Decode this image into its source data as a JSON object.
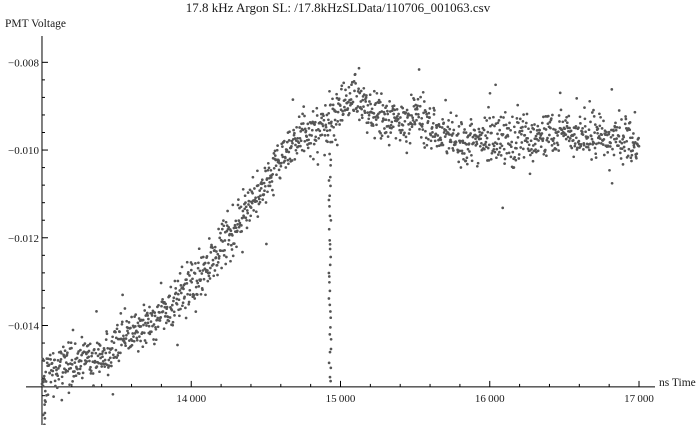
{
  "chart_data": {
    "type": "scatter",
    "title": "17.8 kHz Argon SL: /17.8kHzSLData/110706_001063.csv",
    "xlabel": "ns Time",
    "ylabel": "PMT Voltage",
    "xlim": [
      12980,
      17020
    ],
    "ylim": [
      -0.0162,
      -0.0074
    ],
    "x_axis_at_y": -0.0154,
    "y_axis_at_x": 13000,
    "x_ticks": [
      14000,
      15000,
      16000,
      17000
    ],
    "x_tick_labels": [
      "14 000",
      "15 000",
      "16 000",
      "17 000"
    ],
    "y_ticks": [
      -0.008,
      -0.01,
      -0.012,
      -0.014
    ],
    "y_tick_labels": [
      "−0.008",
      "−0.010",
      "−0.012",
      "−0.014"
    ],
    "marker_color": "#555555",
    "grid": false,
    "trend_points": {
      "x": [
        13000,
        13100,
        13200,
        13300,
        13400,
        13500,
        13600,
        13700,
        13800,
        13900,
        14000,
        14100,
        14200,
        14300,
        14400,
        14500,
        14600,
        14700,
        14800,
        14900,
        15000,
        15100,
        15200,
        15300,
        15400,
        15500,
        15600,
        15700,
        15800,
        15900,
        16000,
        16100,
        16200,
        16300,
        16400,
        16500,
        16600,
        16700,
        16800,
        16900,
        17000
      ],
      "y": [
        -0.0152,
        -0.015,
        -0.0149,
        -0.0148,
        -0.0147,
        -0.0144,
        -0.0142,
        -0.014,
        -0.0137,
        -0.0134,
        -0.0131,
        -0.0127,
        -0.0122,
        -0.0117,
        -0.0113,
        -0.0108,
        -0.0102,
        -0.0098,
        -0.0096,
        -0.0095,
        -0.009,
        -0.0087,
        -0.0092,
        -0.0093,
        -0.0093,
        -0.0092,
        -0.0095,
        -0.0096,
        -0.0098,
        -0.0098,
        -0.0097,
        -0.0097,
        -0.0098,
        -0.0097,
        -0.0097,
        -0.0096,
        -0.0097,
        -0.0096,
        -0.0097,
        -0.0098,
        -0.0098
      ]
    },
    "spread": 0.0005,
    "dip_feature": {
      "x": 14930,
      "y_from": -0.0099,
      "y_to": -0.0153
    },
    "n_points": 1600
  }
}
